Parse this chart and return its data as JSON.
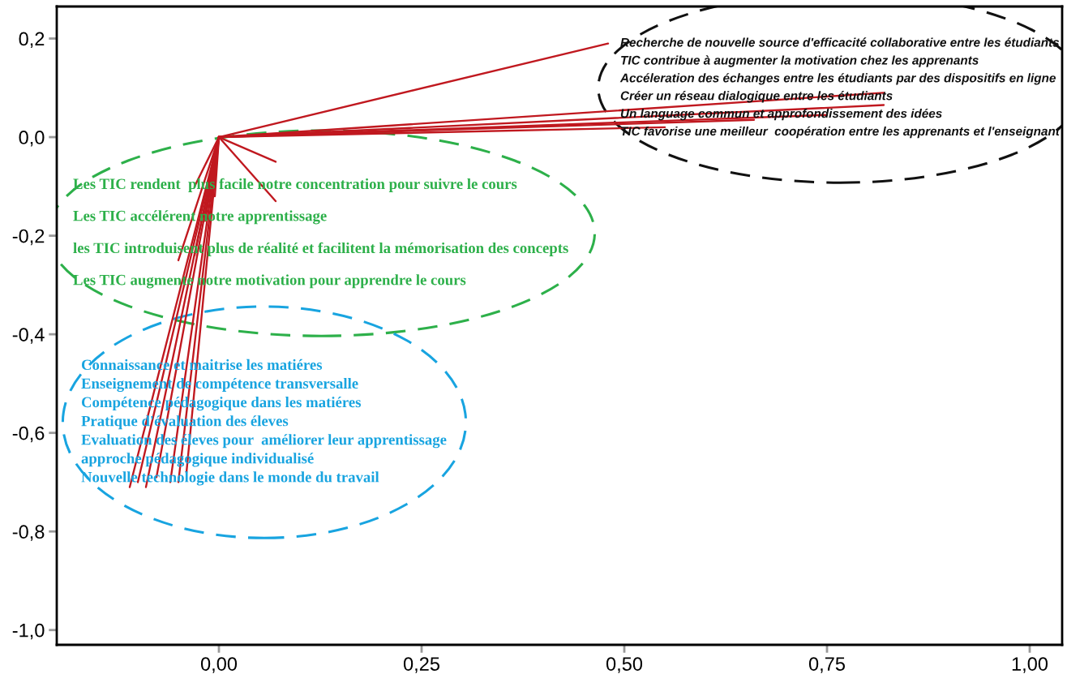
{
  "chart_data": {
    "type": "line",
    "xlim": [
      -0.2,
      1.04
    ],
    "ylim": [
      -1.03,
      0.265
    ],
    "xticks": [
      {
        "value": 0,
        "label": "0,00"
      },
      {
        "value": 0.25,
        "label": "0,25"
      },
      {
        "value": 0.5,
        "label": "0,50"
      },
      {
        "value": 0.75,
        "label": "0,75"
      },
      {
        "value": 1,
        "label": "1,00"
      }
    ],
    "yticks": [
      {
        "value": 0.2,
        "label": "0,2"
      },
      {
        "value": 0,
        "label": "0,0"
      },
      {
        "value": -0.2,
        "label": "-0,2"
      },
      {
        "value": -0.4,
        "label": "-0,4"
      },
      {
        "value": -0.6,
        "label": "-0,6"
      },
      {
        "value": -0.8,
        "label": "-0,8"
      },
      {
        "value": -1.0,
        "label": "-1,0"
      }
    ],
    "grid": false,
    "marker": "none",
    "line_style": "solid",
    "series": [
      {
        "color": "#c0181f",
        "x": [
          0,
          0.48
        ],
        "values": [
          0,
          0.19
        ]
      },
      {
        "color": "#c0181f",
        "x": [
          0,
          0.82
        ],
        "values": [
          0,
          0.09
        ]
      },
      {
        "color": "#c0181f",
        "x": [
          0,
          0.82
        ],
        "values": [
          0,
          0.065
        ]
      },
      {
        "color": "#c0181f",
        "x": [
          0,
          0.75
        ],
        "values": [
          0,
          0.045
        ]
      },
      {
        "color": "#c0181f",
        "x": [
          0,
          0.66
        ],
        "values": [
          0,
          0.035
        ]
      },
      {
        "color": "#c0181f",
        "x": [
          0,
          0.55
        ],
        "values": [
          0,
          0.02
        ]
      },
      {
        "color": "#c0181f",
        "x": [
          0,
          -0.005
        ],
        "values": [
          0,
          -0.12
        ]
      },
      {
        "color": "#c0181f",
        "x": [
          0,
          -0.017
        ],
        "values": [
          0,
          -0.17
        ]
      },
      {
        "color": "#c0181f",
        "x": [
          0,
          -0.03
        ],
        "values": [
          0,
          -0.24
        ]
      },
      {
        "color": "#c0181f",
        "x": [
          0,
          -0.05
        ],
        "values": [
          0,
          -0.25
        ]
      },
      {
        "color": "#c0181f",
        "x": [
          0,
          -0.11
        ],
        "values": [
          0,
          -0.71
        ]
      },
      {
        "color": "#c0181f",
        "x": [
          0,
          -0.1
        ],
        "values": [
          0,
          -0.7
        ]
      },
      {
        "color": "#c0181f",
        "x": [
          0,
          -0.09
        ],
        "values": [
          0,
          -0.71
        ]
      },
      {
        "color": "#c0181f",
        "x": [
          0,
          -0.077
        ],
        "values": [
          0,
          -0.69
        ]
      },
      {
        "color": "#c0181f",
        "x": [
          0,
          -0.06
        ],
        "values": [
          0,
          -0.7
        ]
      },
      {
        "color": "#c0181f",
        "x": [
          0,
          -0.05
        ],
        "values": [
          0,
          -0.7
        ]
      },
      {
        "color": "#c0181f",
        "x": [
          0,
          -0.04
        ],
        "values": [
          0,
          -0.68
        ]
      },
      {
        "color": "#c0181f",
        "x": [
          0,
          0.07
        ],
        "values": [
          0,
          -0.05
        ]
      },
      {
        "color": "#c0181f",
        "x": [
          0,
          0.07
        ],
        "values": [
          0,
          -0.13
        ]
      },
      {
        "color": "#c0181f",
        "x": [
          0,
          -0.03
        ],
        "values": [
          0,
          -0.1
        ]
      }
    ],
    "annotations": [
      {
        "text": "Recherche de nouvelle source d'efficacité collaborative entre les étudiants",
        "x": 0.48,
        "y": 0.19
      },
      {
        "text": "TIC contribue à augmenter la motivation chez les apprenants",
        "x": 0.82,
        "y": 0.09
      },
      {
        "text": "Accéleration des échanges entre les étudiants par des dispositifs en ligne",
        "x": 0.82,
        "y": 0.065
      },
      {
        "text": "Créer un réseau dialogique entre les étudiants",
        "x": 0.75,
        "y": 0.045
      },
      {
        "text": "Un language commun et approfondissement des idées",
        "x": 0.66,
        "y": 0.035
      },
      {
        "text": "TIC favorise une meilleur  coopération entre les apprenants et l'enseignant",
        "x": 0.55,
        "y": 0.02
      },
      {
        "text": "Les TIC rendent  plus facile notre concentration pour suivre le cours",
        "x": -0.005,
        "y": -0.12
      },
      {
        "text": "Les TIC accélérent notre apprentissage",
        "x": -0.017,
        "y": -0.17
      },
      {
        "text": "les TIC introduisent plus de réalité et facilitent la mémorisation des concepts",
        "x": -0.03,
        "y": -0.24
      },
      {
        "text": "Les TIC augmente notre motivation pour apprendre le cours",
        "x": -0.05,
        "y": -0.25
      },
      "Connaissance et maitrise les matiéres",
      "Enseignement de compétence transversalle",
      "Compétence pédagogique dans les matiéres",
      "Pratique d'évaluation des éleves",
      "Evaluation des éleves pour  améliorer leur apprentissage",
      "approche pédagogique individualisé",
      "Nouvelle technologie dans le monde du travail"
    ]
  }
}
